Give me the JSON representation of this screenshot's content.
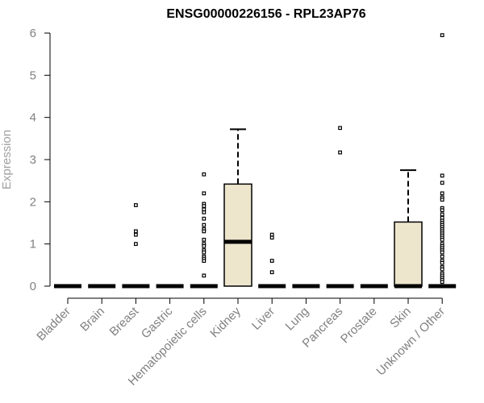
{
  "chart_data": {
    "type": "box",
    "title": "ENSG00000226156 - RPL23AP76",
    "ylabel": "Expression",
    "xlabel": "",
    "ylim": [
      0,
      6
    ],
    "yticks": [
      0,
      1,
      2,
      3,
      4,
      5,
      6
    ],
    "categories": [
      "Bladder",
      "Brain",
      "Breast",
      "Gastric",
      "Hematopoietic cells",
      "Kidney",
      "Liver",
      "Lung",
      "Pancreas",
      "Prostate",
      "Skin",
      "Unknown / Other"
    ],
    "boxes": [
      {
        "category": "Bladder",
        "q1": 0,
        "median": 0,
        "q3": 0,
        "whisker_low": 0,
        "whisker_high": 0,
        "outliers": []
      },
      {
        "category": "Brain",
        "q1": 0,
        "median": 0,
        "q3": 0,
        "whisker_low": 0,
        "whisker_high": 0,
        "outliers": []
      },
      {
        "category": "Breast",
        "q1": 0,
        "median": 0,
        "q3": 0,
        "whisker_low": 0,
        "whisker_high": 0,
        "outliers": [
          1.92,
          1.3,
          1.22,
          1.0
        ]
      },
      {
        "category": "Gastric",
        "q1": 0,
        "median": 0,
        "q3": 0,
        "whisker_low": 0,
        "whisker_high": 0,
        "outliers": []
      },
      {
        "category": "Hematopoietic cells",
        "q1": 0,
        "median": 0,
        "q3": 0,
        "whisker_low": 0,
        "whisker_high": 0,
        "outliers": [
          2.65,
          2.2,
          1.95,
          1.9,
          1.82,
          1.75,
          1.6,
          1.45,
          1.35,
          1.3,
          1.1,
          1.0,
          0.95,
          0.85,
          0.8,
          0.7,
          0.65,
          0.6,
          0.25
        ]
      },
      {
        "category": "Kidney",
        "q1": 0,
        "median": 1.05,
        "q3": 2.42,
        "whisker_low": 0,
        "whisker_high": 3.72,
        "outliers": []
      },
      {
        "category": "Liver",
        "q1": 0,
        "median": 0,
        "q3": 0,
        "whisker_low": 0,
        "whisker_high": 0,
        "outliers": [
          1.22,
          1.15,
          0.6,
          0.33
        ]
      },
      {
        "category": "Lung",
        "q1": 0,
        "median": 0,
        "q3": 0,
        "whisker_low": 0,
        "whisker_high": 0,
        "outliers": []
      },
      {
        "category": "Pancreas",
        "q1": 0,
        "median": 0,
        "q3": 0,
        "whisker_low": 0,
        "whisker_high": 0,
        "outliers": [
          3.75,
          3.17
        ]
      },
      {
        "category": "Prostate",
        "q1": 0,
        "median": 0,
        "q3": 0,
        "whisker_low": 0,
        "whisker_high": 0,
        "outliers": []
      },
      {
        "category": "Skin",
        "q1": 0,
        "median": 0,
        "q3": 1.52,
        "whisker_low": 0,
        "whisker_high": 2.75,
        "outliers": []
      },
      {
        "category": "Unknown / Other",
        "q1": 0,
        "median": 0,
        "q3": 0,
        "whisker_low": 0,
        "whisker_high": 0,
        "outliers": [
          5.95,
          2.62,
          2.45,
          2.2,
          2.1,
          2.05,
          1.85,
          1.8,
          1.7,
          1.62,
          1.55,
          1.5,
          1.45,
          1.4,
          1.35,
          1.3,
          1.25,
          1.2,
          1.15,
          1.1,
          1.0,
          0.95,
          0.9,
          0.85,
          0.8,
          0.7,
          0.6,
          0.55,
          0.45,
          0.4,
          0.3,
          0.25,
          0.2,
          0.15,
          0.1
        ]
      }
    ],
    "colors": {
      "box_fill": "#ede6cd",
      "stroke": "#000000",
      "tick_text": "#808080",
      "axis_label": "#a0a0a0"
    }
  }
}
